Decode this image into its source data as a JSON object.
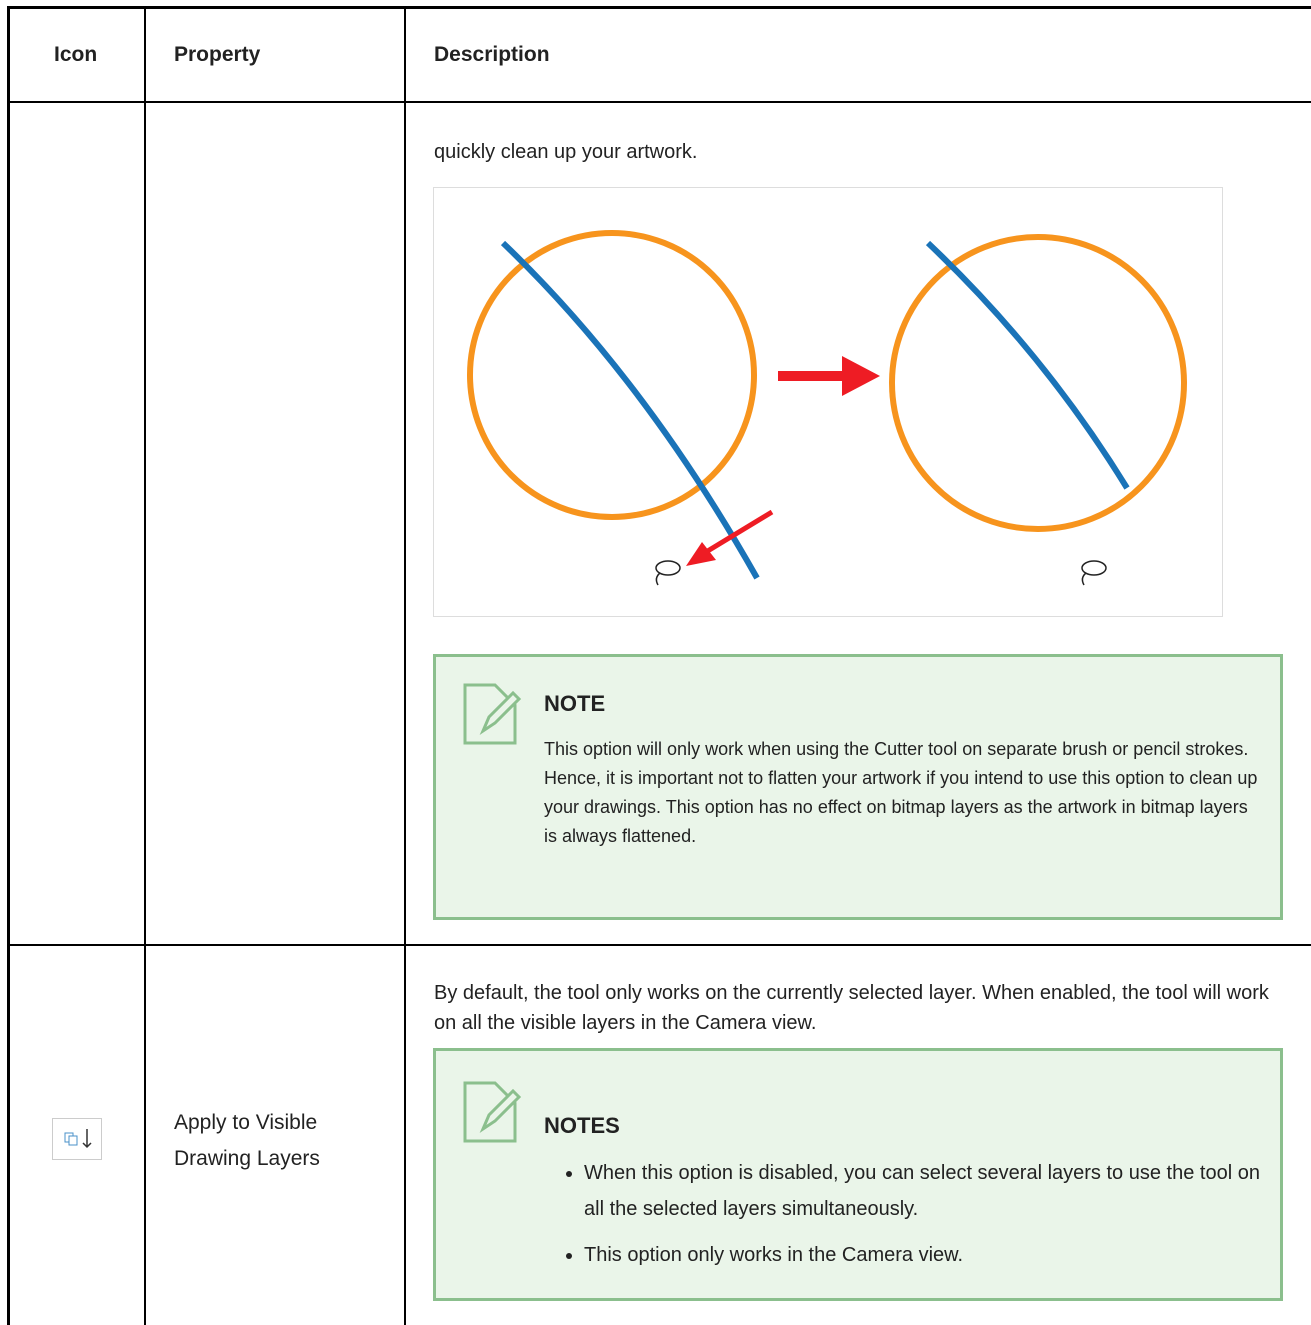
{
  "table": {
    "headers": [
      "Icon",
      "Property",
      "Description"
    ],
    "rows": [
      {
        "description": {
          "text": "quickly clean up your artwork.",
          "note": {
            "title": "NOTE",
            "text": "This option will only work when using the Cutter tool on separate brush or pencil strokes. Hence, it is important not to flatten your artwork if you intend to use this option to clean up your drawings. This option has no effect on bitmap layers as the artwork in bitmap layers is always flattened."
          }
        }
      },
      {
        "property": "Apply to Visible Drawing Layers",
        "description": {
          "text": "By default, the tool only works on the currently selected layer. When enabled, the tool will work on all the visible layers in the Camera view.",
          "note": {
            "title": "NOTES",
            "items": [
              "When this option is disabled, you can select several layers to use the tool on all the selected layers simultaneously.",
              "This option only works in the Camera view."
            ]
          }
        }
      }
    ]
  }
}
